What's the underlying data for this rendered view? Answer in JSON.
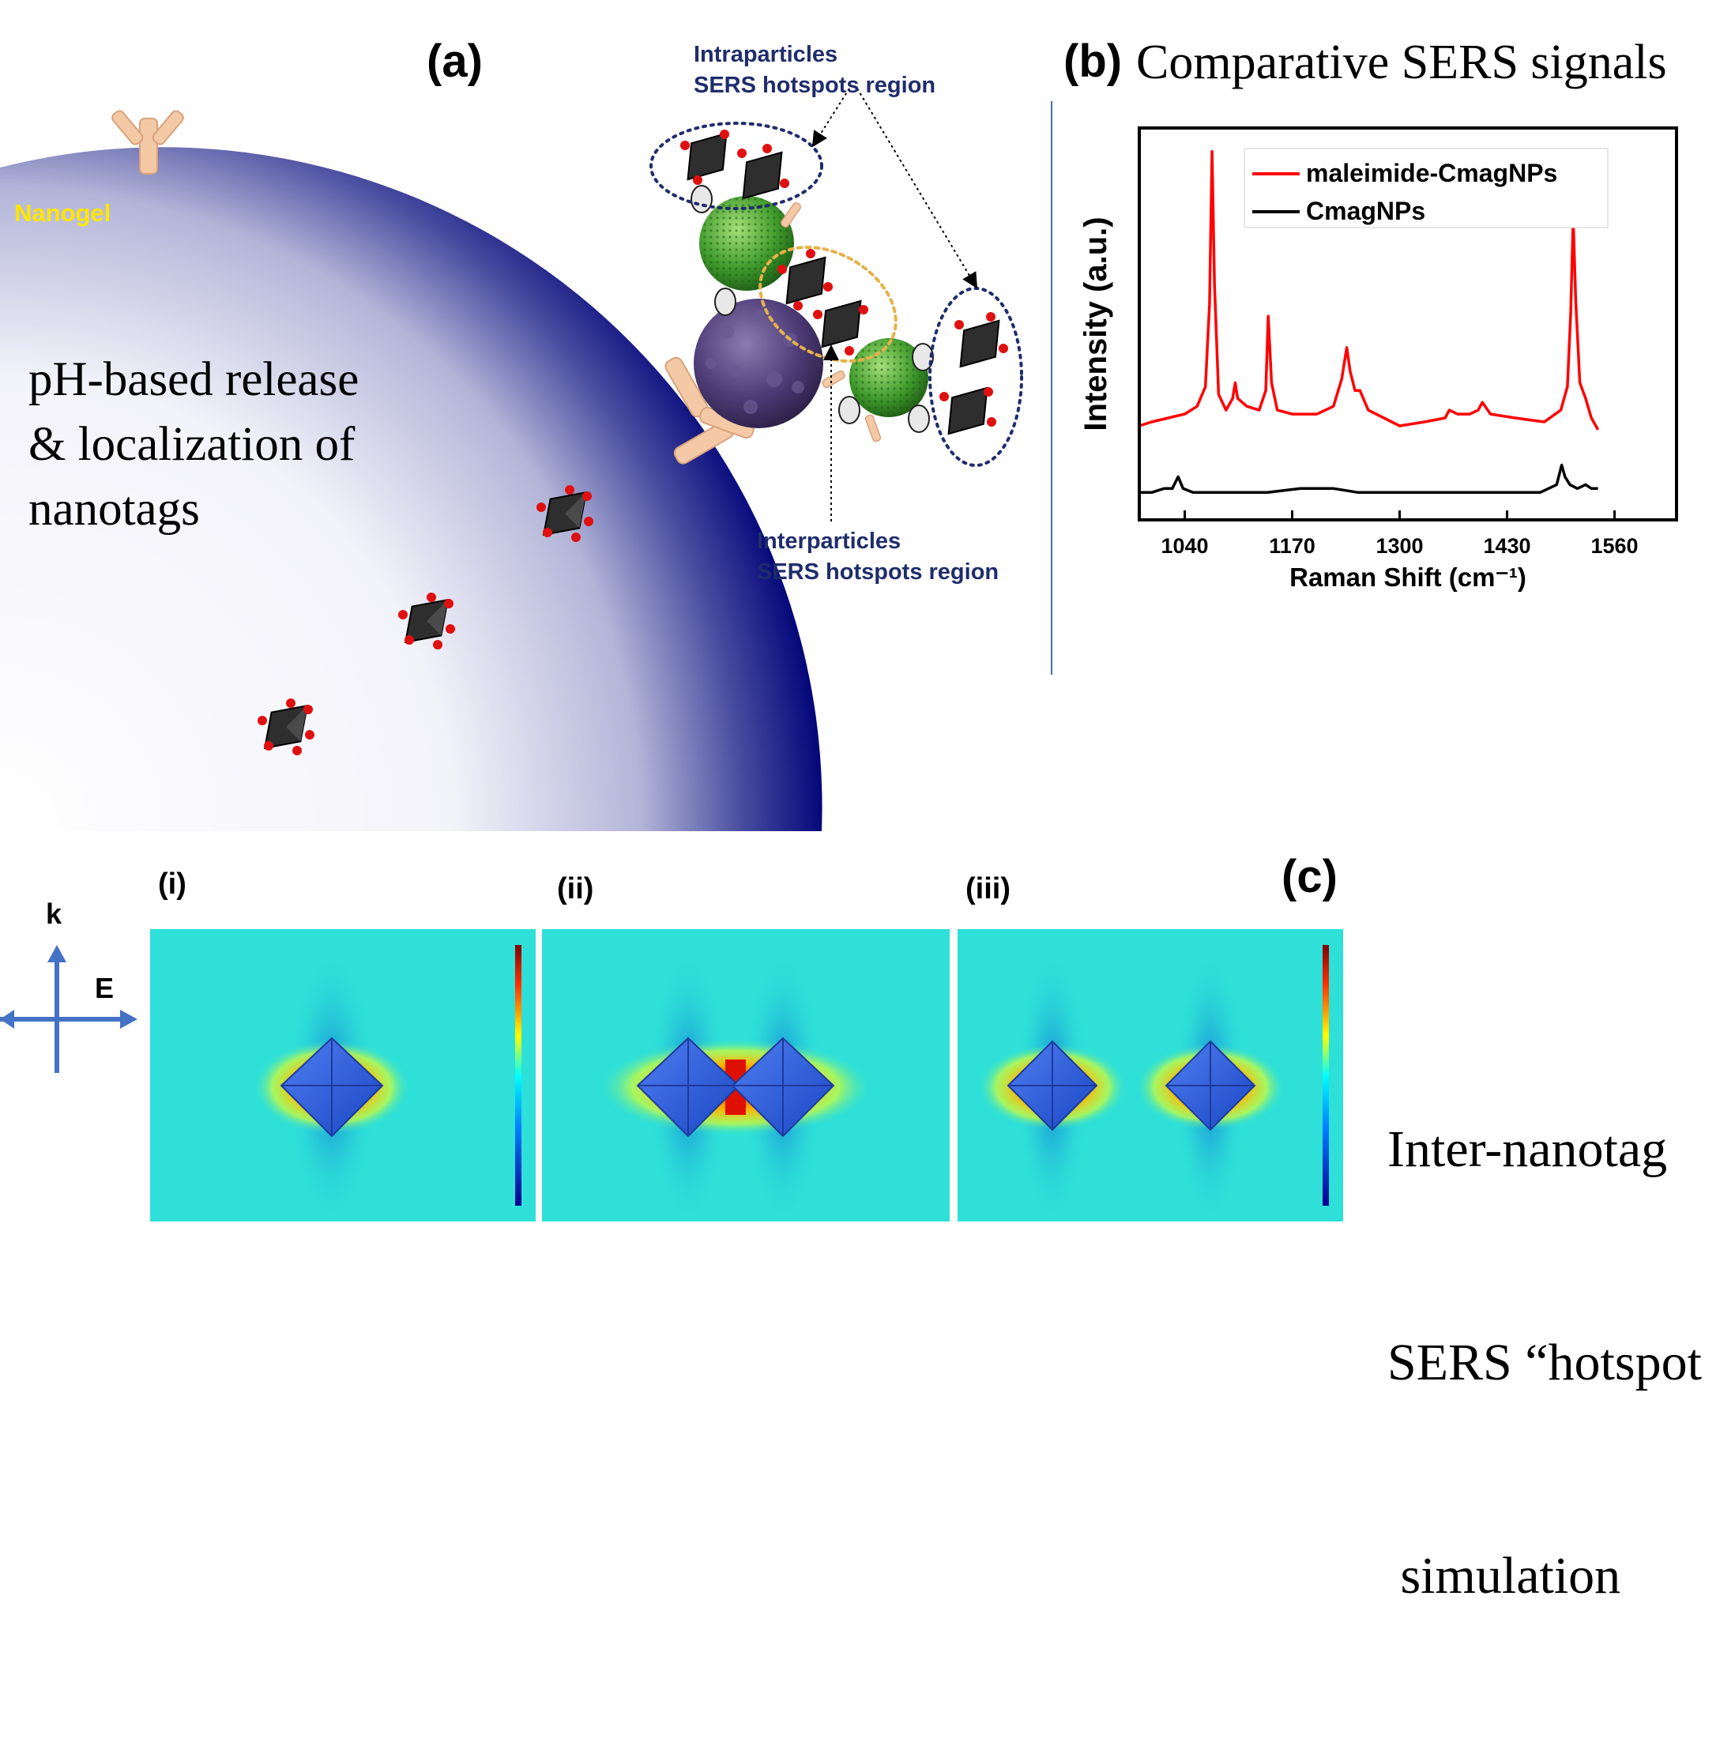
{
  "panel_a": {
    "label": "(a)",
    "nanogel_label": "Nanogel",
    "release_text": [
      "pH-based release",
      "& localization of",
      "nanotags"
    ],
    "intra_label": [
      "Intraparticles",
      "SERS hotspots region"
    ],
    "inter_label": [
      "Interparticles",
      "SERS hotspots region"
    ]
  },
  "panel_b": {
    "label": "(b)",
    "title": "Comparative SERS signals"
  },
  "panel_c": {
    "label": "(c)",
    "sublabels": [
      "(i)",
      "(ii)",
      "(iii)"
    ],
    "axis_k": "k",
    "axis_e": "E",
    "caption": [
      "Inter-nanotag",
      "SERS “hotspot",
      " simulation"
    ]
  },
  "chart_data": {
    "type": "line",
    "title": "",
    "xlabel": "Raman Shift (cm⁻¹)",
    "ylabel": "Intensity (a.u.)",
    "xlim": [
      985,
      1635
    ],
    "ylim": [
      0,
      100
    ],
    "x_ticks": [
      1040,
      1170,
      1300,
      1430,
      1560
    ],
    "y_ticks_shown": false,
    "grid": false,
    "legend_position": "top-right",
    "colors": {
      "maleimide-CmagNPs": "#ff0000",
      "CmagNPs": "#000000"
    },
    "series": [
      {
        "name": "maleimide-CmagNPs",
        "points": [
          [
            985,
            24
          ],
          [
            1000,
            25
          ],
          [
            1020,
            26
          ],
          [
            1040,
            27
          ],
          [
            1055,
            29
          ],
          [
            1065,
            34
          ],
          [
            1070,
            55
          ],
          [
            1073,
            94
          ],
          [
            1076,
            60
          ],
          [
            1081,
            32
          ],
          [
            1090,
            28
          ],
          [
            1098,
            31
          ],
          [
            1101,
            35
          ],
          [
            1104,
            31
          ],
          [
            1115,
            29
          ],
          [
            1130,
            28
          ],
          [
            1138,
            33
          ],
          [
            1141,
            52
          ],
          [
            1145,
            35
          ],
          [
            1152,
            28
          ],
          [
            1170,
            27
          ],
          [
            1200,
            27
          ],
          [
            1220,
            29
          ],
          [
            1230,
            36
          ],
          [
            1236,
            44
          ],
          [
            1240,
            38
          ],
          [
            1246,
            33
          ],
          [
            1252,
            33
          ],
          [
            1262,
            28
          ],
          [
            1300,
            24
          ],
          [
            1330,
            25
          ],
          [
            1355,
            26
          ],
          [
            1360,
            28
          ],
          [
            1370,
            27
          ],
          [
            1385,
            27
          ],
          [
            1395,
            28
          ],
          [
            1400,
            30
          ],
          [
            1410,
            27
          ],
          [
            1440,
            26
          ],
          [
            1475,
            25
          ],
          [
            1495,
            28
          ],
          [
            1503,
            34
          ],
          [
            1507,
            53
          ],
          [
            1510,
            77
          ],
          [
            1513,
            56
          ],
          [
            1518,
            35
          ],
          [
            1525,
            31
          ],
          [
            1532,
            26
          ],
          [
            1540,
            23
          ]
        ]
      },
      {
        "name": "CmagNPs",
        "points": [
          [
            985,
            7
          ],
          [
            1000,
            7
          ],
          [
            1015,
            8
          ],
          [
            1025,
            8
          ],
          [
            1032,
            11
          ],
          [
            1038,
            8
          ],
          [
            1050,
            7
          ],
          [
            1080,
            7
          ],
          [
            1110,
            7
          ],
          [
            1140,
            7
          ],
          [
            1180,
            8
          ],
          [
            1220,
            8
          ],
          [
            1250,
            7
          ],
          [
            1300,
            7
          ],
          [
            1360,
            7
          ],
          [
            1420,
            7
          ],
          [
            1470,
            7
          ],
          [
            1490,
            9
          ],
          [
            1496,
            14
          ],
          [
            1500,
            11
          ],
          [
            1506,
            9
          ],
          [
            1515,
            8
          ],
          [
            1525,
            9
          ],
          [
            1532,
            8
          ],
          [
            1540,
            8
          ]
        ]
      }
    ]
  }
}
